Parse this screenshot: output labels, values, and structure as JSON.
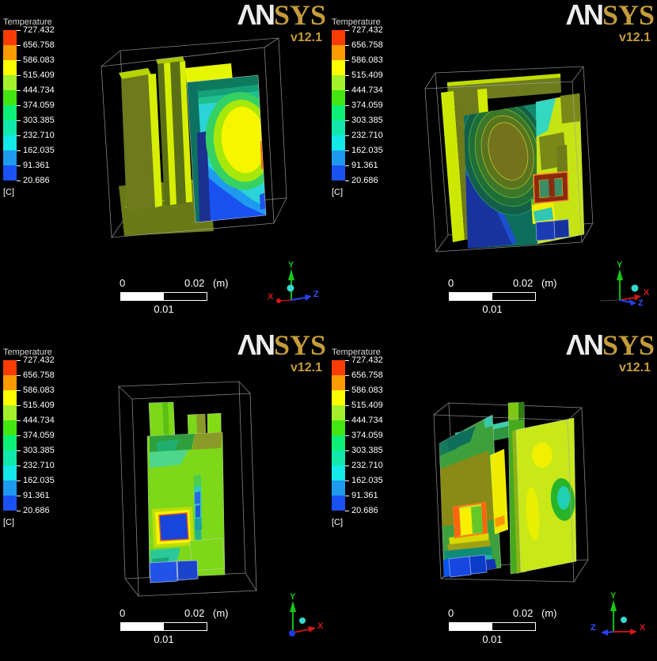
{
  "brand": {
    "logo_an": "ΛN",
    "logo_sys": "SYS",
    "version": "v12.1",
    "gold_color": "#c59c3a",
    "white_color": "#ededed"
  },
  "legend": {
    "title": "Temperature",
    "unit": "[C]",
    "ticks": [
      "727.432",
      "656.758",
      "586.083",
      "515.409",
      "444.734",
      "374.059",
      "303.385",
      "232.710",
      "162.035",
      "91.361",
      "20.686"
    ],
    "band_colors": [
      "#fa3c04",
      "#fc9a02",
      "#fcfc02",
      "#a4f02a",
      "#44e612",
      "#0cf076",
      "#12e8ac",
      "#14e8e8",
      "#1e9aee",
      "#1a52f2"
    ]
  },
  "scale_bar": {
    "start": "0",
    "end": "0.02",
    "unit": "(m)",
    "middle": "0.01"
  },
  "axes": {
    "x": "X",
    "y": "Y",
    "z": "Z",
    "x_color": "#d01818",
    "y_color": "#18c818",
    "z_color": "#3050ff",
    "ball_color": "#38d8d0"
  }
}
